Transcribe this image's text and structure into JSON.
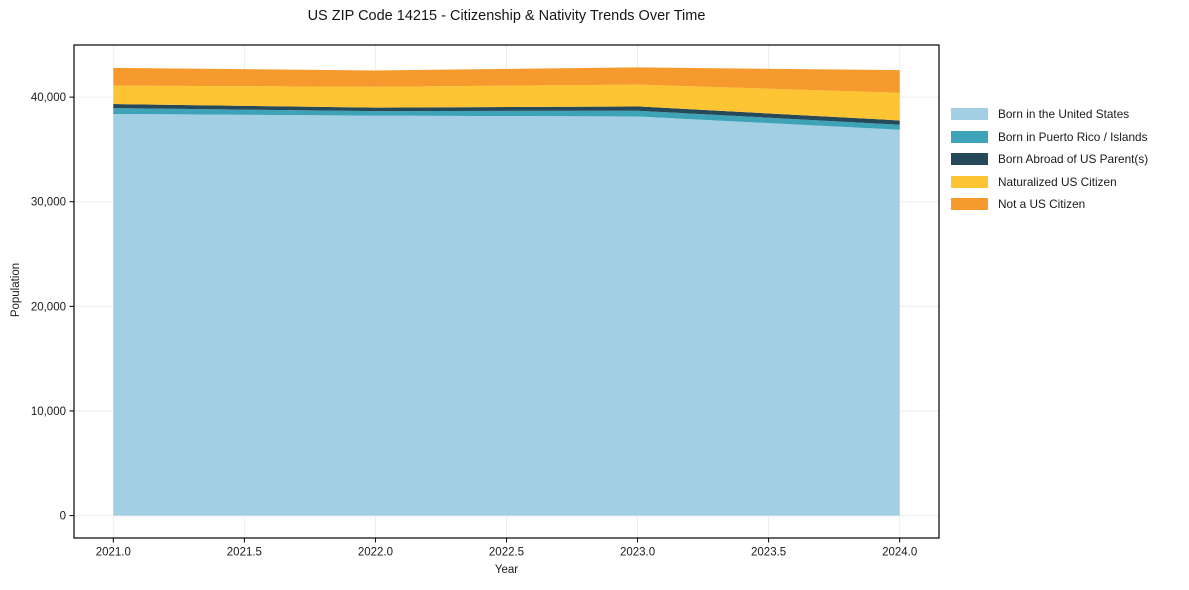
{
  "chart_data": {
    "type": "area",
    "stacked": true,
    "title": "US ZIP Code 14215 - Citizenship & Nativity Trends Over Time",
    "xlabel": "Year",
    "ylabel": "Population",
    "x": [
      2021,
      2022,
      2023,
      2024
    ],
    "series": [
      {
        "name": "Born in the United States",
        "color": "#A3CFE5",
        "values": [
          38390,
          38230,
          38150,
          36880
        ]
      },
      {
        "name": "Born in Puerto Rico / Islands",
        "color": "#3FA3B8",
        "values": [
          560,
          430,
          550,
          480
        ]
      },
      {
        "name": "Born Abroad of US Parent(s)",
        "color": "#26495A",
        "values": [
          390,
          330,
          410,
          410
        ]
      },
      {
        "name": "Naturalized US Citizen",
        "color": "#FDC433",
        "values": [
          1760,
          2000,
          2090,
          2640
        ]
      },
      {
        "name": "Not a US Citizen",
        "color": "#F79A2D",
        "values": [
          1700,
          1560,
          1640,
          2170
        ]
      }
    ],
    "stack_totals": [
      42800,
      42550,
      42840,
      42580
    ],
    "xlim": [
      2020.85,
      2024.15
    ],
    "ylim": [
      -2142,
      44982
    ],
    "xticks": {
      "values": [
        2021.0,
        2021.5,
        2022.0,
        2022.5,
        2023.0,
        2023.5,
        2024.0
      ],
      "labels": [
        "2021.0",
        "2021.5",
        "2022.0",
        "2022.5",
        "2023.0",
        "2023.5",
        "2024.0"
      ]
    },
    "yticks": {
      "values": [
        0,
        10000,
        20000,
        30000,
        40000
      ],
      "labels": [
        "0",
        "10,000",
        "20,000",
        "30,000",
        "40,000"
      ]
    },
    "grid": true,
    "legend_position": "right-outside",
    "colors": {
      "grid": "#ececec",
      "frame": "#000000",
      "text": "#1a1a1a",
      "background": "#ffffff"
    }
  }
}
